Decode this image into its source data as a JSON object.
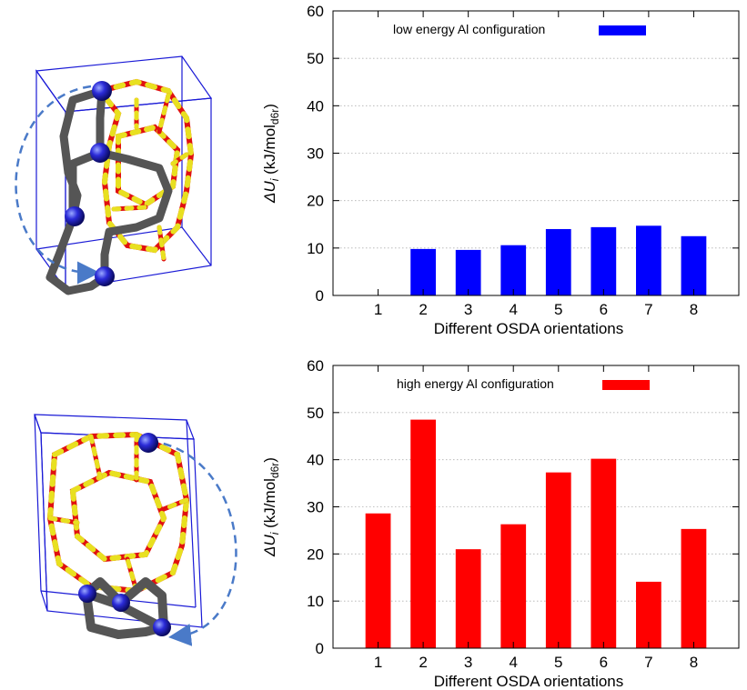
{
  "chart_data": [
    {
      "type": "bar",
      "categories": [
        "1",
        "2",
        "3",
        "4",
        "5",
        "6",
        "7",
        "8"
      ],
      "series": [
        {
          "name": "low energy Al configuration",
          "color": "#0000ff",
          "values": [
            0,
            9.8,
            9.6,
            10.6,
            14.0,
            14.4,
            14.7,
            12.5
          ]
        }
      ],
      "xlabel": "Different OSDA orientations",
      "ylabel_main": "ΔU",
      "ylabel_sub": "i",
      "ylabel_unit": "(kJ/mol",
      "ylabel_unit_sub": "d6r",
      "ylabel_close": ")",
      "ylim": [
        0,
        60
      ],
      "yticks": [
        "0",
        "10",
        "20",
        "30",
        "40",
        "50",
        "60"
      ],
      "grid": true,
      "legend_position": "top-left"
    },
    {
      "type": "bar",
      "categories": [
        "1",
        "2",
        "3",
        "4",
        "5",
        "6",
        "7",
        "8"
      ],
      "series": [
        {
          "name": "high energy Al configuration",
          "color": "#ff0000",
          "values": [
            28.6,
            48.5,
            21.0,
            26.3,
            37.3,
            40.2,
            14.1,
            25.3
          ]
        }
      ],
      "xlabel": "Different OSDA orientations",
      "ylabel_main": "ΔU",
      "ylabel_sub": "i",
      "ylabel_unit": "(kJ/mol",
      "ylabel_unit_sub": "d6r",
      "ylabel_close": ")",
      "ylim": [
        0,
        60
      ],
      "yticks": [
        "0",
        "10",
        "20",
        "30",
        "40",
        "50",
        "60"
      ],
      "grid": true,
      "legend_position": "top-left"
    }
  ],
  "structure_colors": {
    "box": "#1a1ad6",
    "osda": "#555555",
    "oxygen": "#e01010",
    "silicon": "#e8e020",
    "nitrogen": "#1a1ad6",
    "arrow": "#4a7ac8"
  }
}
